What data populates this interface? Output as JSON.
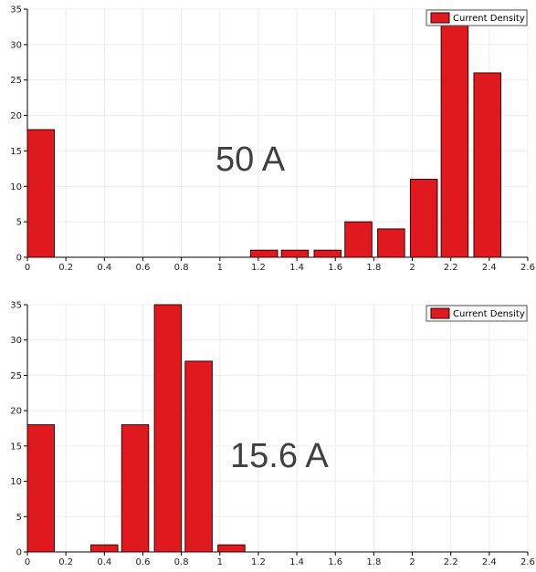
{
  "chart_data": [
    {
      "type": "bar",
      "annotation": "50 A",
      "legend": {
        "label": "Current Density",
        "position": "top-right"
      },
      "color": "#e0191f",
      "edge_color": "#3a0000",
      "grid": true,
      "xlim": [
        0,
        2.6
      ],
      "ylim": [
        0,
        35
      ],
      "bin_width": 0.14,
      "x_ticks": [
        "0",
        "0.2",
        "0.4",
        "0.6",
        "0.8",
        "1",
        "1.2",
        "1.4",
        "1.6",
        "1.8",
        "2",
        "2.2",
        "2.4",
        "2.6"
      ],
      "y_ticks": [
        "0",
        "5",
        "10",
        "15",
        "20",
        "25",
        "30",
        "35"
      ],
      "x": [
        0.07,
        0.23,
        0.4,
        0.56,
        0.73,
        0.89,
        1.06,
        1.23,
        1.39,
        1.56,
        1.72,
        1.89,
        2.06,
        2.22,
        2.39
      ],
      "values": [
        18,
        0,
        0,
        0,
        0,
        0,
        0,
        1,
        1,
        1,
        5,
        4,
        11,
        33,
        26
      ]
    },
    {
      "type": "bar",
      "annotation": "15.6 A",
      "legend": {
        "label": "Current Density",
        "position": "top-right"
      },
      "color": "#e0191f",
      "edge_color": "#3a0000",
      "grid": true,
      "xlim": [
        0,
        2.6
      ],
      "ylim": [
        0,
        35
      ],
      "bin_width": 0.14,
      "x_ticks": [
        "0",
        "0.2",
        "0.4",
        "0.6",
        "0.8",
        "1",
        "1.2",
        "1.4",
        "1.6",
        "1.8",
        "2",
        "2.2",
        "2.4",
        "2.6"
      ],
      "y_ticks": [
        "0",
        "5",
        "10",
        "15",
        "20",
        "25",
        "30",
        "35"
      ],
      "x": [
        0.07,
        0.23,
        0.4,
        0.56,
        0.73,
        0.89,
        1.06,
        1.23,
        1.39,
        1.56,
        1.72,
        1.89,
        2.06,
        2.22,
        2.39
      ],
      "values": [
        18,
        0,
        1,
        18,
        35,
        27,
        1,
        0,
        0,
        0,
        0,
        0,
        0,
        0,
        0
      ]
    }
  ]
}
